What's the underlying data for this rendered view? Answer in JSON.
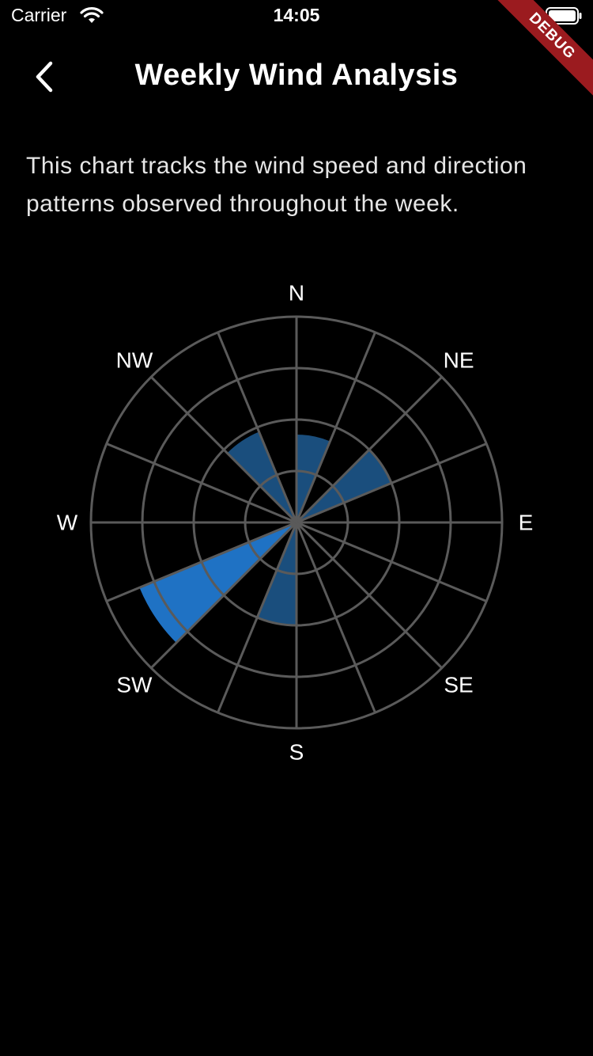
{
  "status_bar": {
    "carrier": "Carrier",
    "time": "14:05",
    "wifi_icon": "wifi-icon",
    "battery_icon": "battery-full-icon"
  },
  "debug_banner": "DEBUG",
  "header": {
    "back_icon": "chevron-left-icon",
    "title": "Weekly Wind Analysis"
  },
  "description": "This chart tracks the wind speed and direction patterns observed throughout the week.",
  "colors": {
    "background": "#000000",
    "grid": "#5a5a5a",
    "sector_dark": "#1a4e7d",
    "sector_bright": "#1f72c4",
    "debug_ribbon": "#9b1b1f"
  },
  "chart_data": {
    "type": "polar-area",
    "directions": [
      "N",
      "NNE",
      "NE",
      "ENE",
      "E",
      "ESE",
      "SE",
      "SSE",
      "S",
      "SSW",
      "SW",
      "WSW",
      "W",
      "WNW",
      "NW",
      "NNW"
    ],
    "direction_labels": [
      "N",
      "NE",
      "E",
      "SE",
      "S",
      "SW",
      "W",
      "NW"
    ],
    "values": [
      1.7,
      0,
      2,
      0,
      0,
      0,
      0,
      0,
      2,
      0,
      3.3,
      0,
      0,
      0,
      1.9,
      0
    ],
    "emphasis": [
      false,
      false,
      false,
      false,
      false,
      false,
      false,
      false,
      false,
      false,
      true,
      false,
      false,
      false,
      false,
      false
    ],
    "rings": [
      1,
      2,
      3,
      4
    ],
    "r_max": 4,
    "grid": true,
    "title": "",
    "legend": "none"
  }
}
